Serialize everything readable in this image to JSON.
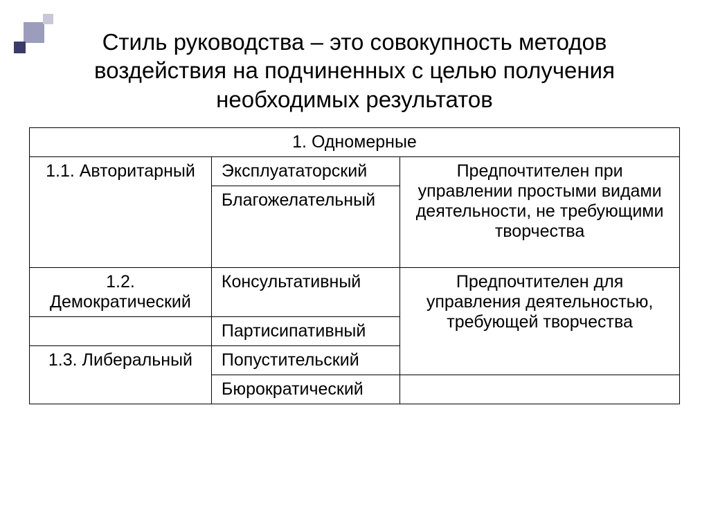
{
  "title": "Стиль руководства – это совокупность методов воздействия на подчиненных с целью получения необходимых результатов",
  "table": {
    "header": "1. Одномерные",
    "rows": {
      "r1": {
        "c1": "1.1. Авторитарный",
        "c2": "Эксплуататорский",
        "c3": "Предпочтителен при управлении простыми видами деятельности, не требующими творчества"
      },
      "r2": {
        "c2": "Благожелательный"
      },
      "r3": {
        "c1": "1.2. Демократический",
        "c2": "Консультативный",
        "c3": "Предпочтителен для управления деятельностью, требующей творчества"
      },
      "r4": {
        "c2": "Партисипативный"
      },
      "r5": {
        "c1": "1.3. Либеральный",
        "c2": "Попустительский"
      },
      "r6": {
        "c2": "Бюрократический",
        "c3": ""
      }
    }
  },
  "style": {
    "background": "#ffffff",
    "text_color": "#000000",
    "border_color": "#000000",
    "title_fontsize": 33,
    "cell_fontsize": 25,
    "decoration_colors": {
      "large": "#9c9cbd",
      "small": "#c8c8d8",
      "dark": "#3a3a6b"
    }
  }
}
